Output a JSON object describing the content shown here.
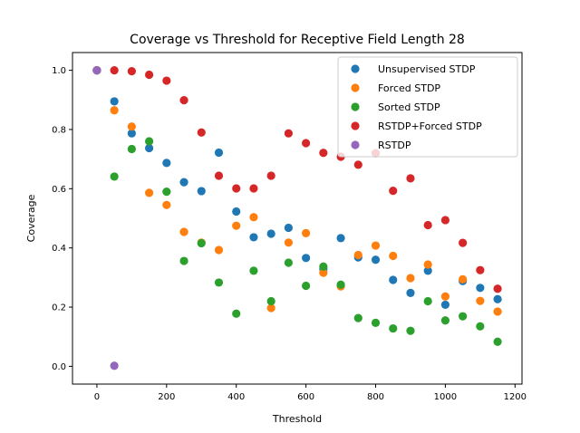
{
  "chart_data": {
    "type": "scatter",
    "title": "Coverage vs Threshold for Receptive Field Length 28",
    "xlabel": "Threshold",
    "ylabel": "Coverage",
    "xlim": [
      -70,
      1220
    ],
    "ylim": [
      -0.06,
      1.06
    ],
    "xticks": [
      0,
      200,
      400,
      600,
      800,
      1000,
      1200
    ],
    "yticks": [
      0.0,
      0.2,
      0.4,
      0.6,
      0.8,
      1.0
    ],
    "grid": false,
    "legend_position": "top-right",
    "series": [
      {
        "name": "Unsupervised STDP",
        "color": "#1f77b4",
        "points": [
          [
            0,
            1.0
          ],
          [
            50,
            0.895
          ],
          [
            100,
            0.787
          ],
          [
            150,
            0.737
          ],
          [
            200,
            0.687
          ],
          [
            250,
            0.622
          ],
          [
            300,
            0.592
          ],
          [
            350,
            0.722
          ],
          [
            400,
            0.523
          ],
          [
            450,
            0.436
          ],
          [
            500,
            0.448
          ],
          [
            550,
            0.468
          ],
          [
            600,
            0.366
          ],
          [
            650,
            0.329
          ],
          [
            700,
            0.433
          ],
          [
            750,
            0.368
          ],
          [
            800,
            0.36
          ],
          [
            850,
            0.292
          ],
          [
            900,
            0.248
          ],
          [
            950,
            0.323
          ],
          [
            1000,
            0.208
          ],
          [
            1050,
            0.288
          ],
          [
            1100,
            0.265
          ],
          [
            1150,
            0.227
          ]
        ]
      },
      {
        "name": "Forced STDP",
        "color": "#ff7f0e",
        "points": [
          [
            0,
            1.0
          ],
          [
            50,
            0.865
          ],
          [
            100,
            0.81
          ],
          [
            150,
            0.586
          ],
          [
            200,
            0.545
          ],
          [
            250,
            0.454
          ],
          [
            300,
            0.418
          ],
          [
            350,
            0.393
          ],
          [
            400,
            0.475
          ],
          [
            450,
            0.504
          ],
          [
            500,
            0.197
          ],
          [
            550,
            0.418
          ],
          [
            600,
            0.45
          ],
          [
            650,
            0.316
          ],
          [
            700,
            0.27
          ],
          [
            750,
            0.376
          ],
          [
            800,
            0.408
          ],
          [
            850,
            0.373
          ],
          [
            900,
            0.298
          ],
          [
            950,
            0.344
          ],
          [
            1000,
            0.236
          ],
          [
            1050,
            0.294
          ],
          [
            1100,
            0.221
          ],
          [
            1150,
            0.185
          ]
        ]
      },
      {
        "name": "Sorted STDP",
        "color": "#2ca02c",
        "points": [
          [
            0,
            1.0
          ],
          [
            50,
            0.641
          ],
          [
            100,
            0.734
          ],
          [
            150,
            0.76
          ],
          [
            200,
            0.59
          ],
          [
            250,
            0.356
          ],
          [
            300,
            0.416
          ],
          [
            350,
            0.283
          ],
          [
            400,
            0.178
          ],
          [
            450,
            0.323
          ],
          [
            500,
            0.22
          ],
          [
            550,
            0.35
          ],
          [
            600,
            0.272
          ],
          [
            650,
            0.337
          ],
          [
            700,
            0.276
          ],
          [
            750,
            0.163
          ],
          [
            800,
            0.147
          ],
          [
            850,
            0.128
          ],
          [
            900,
            0.12
          ],
          [
            950,
            0.22
          ],
          [
            1000,
            0.155
          ],
          [
            1050,
            0.169
          ],
          [
            1100,
            0.135
          ],
          [
            1150,
            0.083
          ]
        ]
      },
      {
        "name": "RSTDP+Forced STDP",
        "color": "#d62728",
        "points": [
          [
            0,
            1.0
          ],
          [
            50,
            1.0
          ],
          [
            100,
            0.997
          ],
          [
            150,
            0.985
          ],
          [
            200,
            0.965
          ],
          [
            250,
            0.899
          ],
          [
            300,
            0.79
          ],
          [
            350,
            0.644
          ],
          [
            400,
            0.601
          ],
          [
            450,
            0.601
          ],
          [
            500,
            0.644
          ],
          [
            550,
            0.787
          ],
          [
            600,
            0.754
          ],
          [
            650,
            0.721
          ],
          [
            700,
            0.708
          ],
          [
            750,
            0.681
          ],
          [
            800,
            0.72
          ],
          [
            850,
            0.593
          ],
          [
            900,
            0.635
          ],
          [
            950,
            0.477
          ],
          [
            1000,
            0.494
          ],
          [
            1050,
            0.417
          ],
          [
            1100,
            0.325
          ],
          [
            1150,
            0.262
          ]
        ]
      },
      {
        "name": "RSTDP",
        "color": "#9467bd",
        "points": [
          [
            0,
            1.0
          ],
          [
            50,
            0.002
          ]
        ]
      }
    ]
  }
}
